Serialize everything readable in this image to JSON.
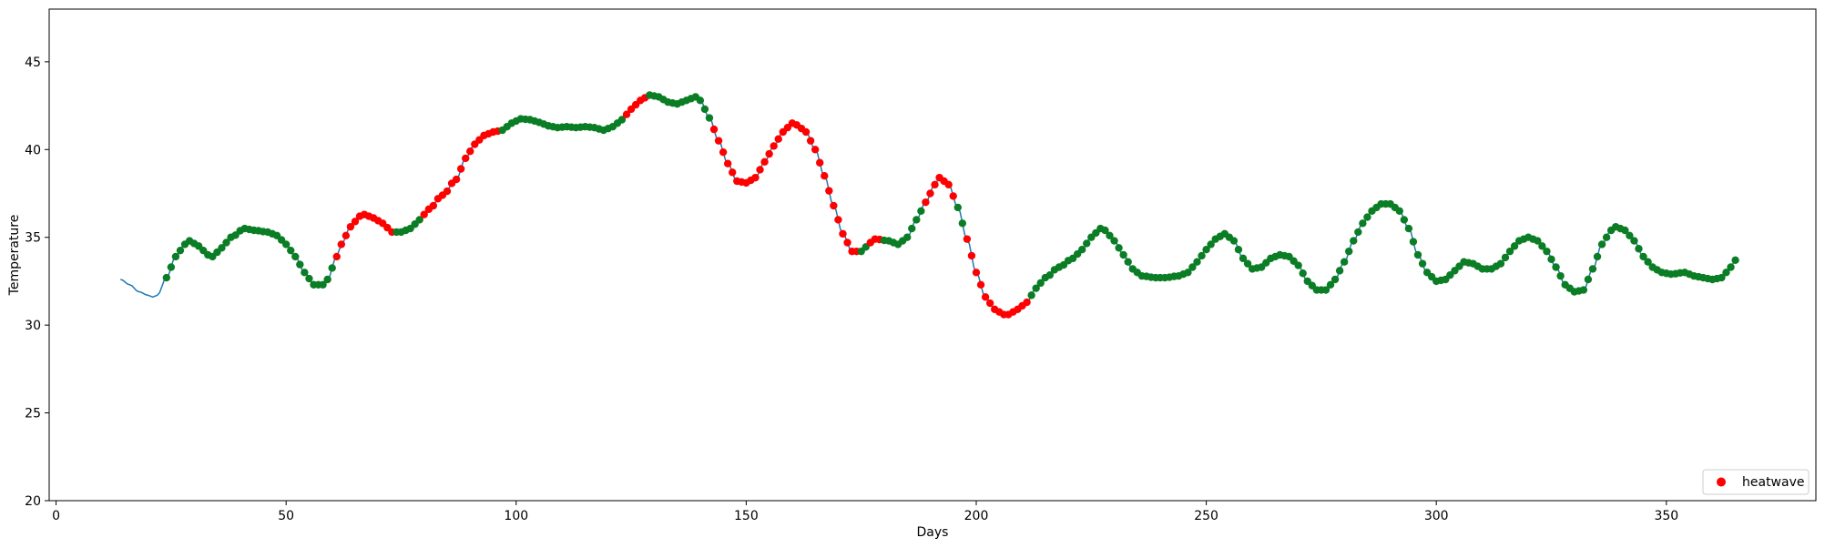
{
  "chart_data": {
    "type": "line",
    "title": "",
    "xlabel": "Days",
    "ylabel": "Temperature",
    "xlim": [
      -1.5,
      382.5
    ],
    "ylim": [
      20,
      48
    ],
    "xticks": [
      0,
      50,
      100,
      150,
      200,
      250,
      300,
      350
    ],
    "yticks": [
      20,
      25,
      30,
      35,
      40,
      45
    ],
    "grid": false,
    "legend": {
      "entries": [
        "heatwave"
      ],
      "position": "lower right"
    },
    "colors": {
      "line": "#1f77b4",
      "heatwave": "#ff0000",
      "green": "#0a7d25"
    },
    "line_start_day": 14,
    "marker_start_day": 24,
    "end_day": 365,
    "keyframes": [
      [
        14,
        32.6
      ],
      [
        16,
        32.3
      ],
      [
        18,
        31.9
      ],
      [
        20,
        31.7
      ],
      [
        21,
        31.6
      ],
      [
        22,
        31.7
      ],
      [
        24,
        32.7
      ],
      [
        26,
        33.9
      ],
      [
        28,
        34.6
      ],
      [
        29,
        34.8
      ],
      [
        31,
        34.5
      ],
      [
        33,
        34.0
      ],
      [
        34,
        33.9
      ],
      [
        36,
        34.4
      ],
      [
        38,
        35.0
      ],
      [
        41,
        35.5
      ],
      [
        43,
        35.4
      ],
      [
        46,
        35.3
      ],
      [
        48,
        35.1
      ],
      [
        50,
        34.6
      ],
      [
        52,
        33.9
      ],
      [
        54,
        33.0
      ],
      [
        56,
        32.3
      ],
      [
        58,
        32.3
      ],
      [
        59,
        32.6
      ],
      [
        61,
        33.9
      ],
      [
        62,
        34.6
      ],
      [
        64,
        35.6
      ],
      [
        66,
        36.2
      ],
      [
        67,
        36.3
      ],
      [
        69,
        36.1
      ],
      [
        71,
        35.8
      ],
      [
        73,
        35.3
      ],
      [
        75,
        35.3
      ],
      [
        77,
        35.5
      ],
      [
        79,
        36.0
      ],
      [
        81,
        36.6
      ],
      [
        84,
        37.4
      ],
      [
        87,
        38.3
      ],
      [
        89,
        39.5
      ],
      [
        91,
        40.3
      ],
      [
        93,
        40.8
      ],
      [
        95,
        41.0
      ],
      [
        97,
        41.1
      ],
      [
        99,
        41.5
      ],
      [
        101,
        41.75
      ],
      [
        103,
        41.7
      ],
      [
        105,
        41.55
      ],
      [
        107,
        41.35
      ],
      [
        109,
        41.25
      ],
      [
        111,
        41.3
      ],
      [
        113,
        41.25
      ],
      [
        115,
        41.3
      ],
      [
        117,
        41.25
      ],
      [
        119,
        41.1
      ],
      [
        121,
        41.3
      ],
      [
        123,
        41.7
      ],
      [
        125,
        42.3
      ],
      [
        127,
        42.8
      ],
      [
        129,
        43.1
      ],
      [
        131,
        43.0
      ],
      [
        133,
        42.7
      ],
      [
        135,
        42.6
      ],
      [
        137,
        42.8
      ],
      [
        139,
        43.0
      ],
      [
        140,
        42.8
      ],
      [
        142,
        41.8
      ],
      [
        144,
        40.5
      ],
      [
        146,
        39.2
      ],
      [
        148,
        38.2
      ],
      [
        150,
        38.1
      ],
      [
        152,
        38.4
      ],
      [
        154,
        39.3
      ],
      [
        156,
        40.2
      ],
      [
        158,
        41.0
      ],
      [
        160,
        41.5
      ],
      [
        161,
        41.4
      ],
      [
        163,
        41.0
      ],
      [
        165,
        40.0
      ],
      [
        167,
        38.5
      ],
      [
        169,
        36.8
      ],
      [
        171,
        35.2
      ],
      [
        173,
        34.2
      ],
      [
        175,
        34.2
      ],
      [
        177,
        34.7
      ],
      [
        178,
        34.9
      ],
      [
        181,
        34.8
      ],
      [
        183,
        34.6
      ],
      [
        185,
        35.0
      ],
      [
        187,
        36.0
      ],
      [
        189,
        37.0
      ],
      [
        191,
        38.0
      ],
      [
        192,
        38.4
      ],
      [
        194,
        38.0
      ],
      [
        196,
        36.7
      ],
      [
        198,
        34.9
      ],
      [
        200,
        33.0
      ],
      [
        202,
        31.6
      ],
      [
        204,
        30.9
      ],
      [
        206,
        30.6
      ],
      [
        207,
        30.6
      ],
      [
        209,
        30.9
      ],
      [
        211,
        31.3
      ],
      [
        213,
        32.1
      ],
      [
        215,
        32.7
      ],
      [
        218,
        33.3
      ],
      [
        221,
        33.8
      ],
      [
        223,
        34.3
      ],
      [
        225,
        35.0
      ],
      [
        227,
        35.5
      ],
      [
        228,
        35.4
      ],
      [
        230,
        34.8
      ],
      [
        232,
        34.0
      ],
      [
        234,
        33.2
      ],
      [
        236,
        32.8
      ],
      [
        239,
        32.7
      ],
      [
        241,
        32.7
      ],
      [
        244,
        32.8
      ],
      [
        246,
        33.0
      ],
      [
        248,
        33.6
      ],
      [
        250,
        34.3
      ],
      [
        252,
        34.9
      ],
      [
        254,
        35.2
      ],
      [
        256,
        34.8
      ],
      [
        258,
        33.8
      ],
      [
        260,
        33.2
      ],
      [
        262,
        33.3
      ],
      [
        264,
        33.8
      ],
      [
        266,
        34.0
      ],
      [
        268,
        33.9
      ],
      [
        270,
        33.4
      ],
      [
        272,
        32.5
      ],
      [
        274,
        32.0
      ],
      [
        276,
        32.0
      ],
      [
        278,
        32.6
      ],
      [
        280,
        33.6
      ],
      [
        282,
        34.8
      ],
      [
        284,
        35.8
      ],
      [
        286,
        36.5
      ],
      [
        288,
        36.9
      ],
      [
        290,
        36.9
      ],
      [
        292,
        36.5
      ],
      [
        294,
        35.5
      ],
      [
        296,
        34.0
      ],
      [
        298,
        33.0
      ],
      [
        300,
        32.5
      ],
      [
        302,
        32.6
      ],
      [
        304,
        33.1
      ],
      [
        306,
        33.6
      ],
      [
        308,
        33.5
      ],
      [
        310,
        33.2
      ],
      [
        312,
        33.2
      ],
      [
        314,
        33.5
      ],
      [
        316,
        34.2
      ],
      [
        318,
        34.8
      ],
      [
        320,
        35.0
      ],
      [
        322,
        34.8
      ],
      [
        324,
        34.2
      ],
      [
        326,
        33.3
      ],
      [
        328,
        32.3
      ],
      [
        330,
        31.9
      ],
      [
        332,
        32.0
      ],
      [
        334,
        33.2
      ],
      [
        336,
        34.6
      ],
      [
        338,
        35.4
      ],
      [
        339,
        35.6
      ],
      [
        341,
        35.4
      ],
      [
        343,
        34.8
      ],
      [
        345,
        33.9
      ],
      [
        347,
        33.3
      ],
      [
        349,
        33.0
      ],
      [
        351,
        32.9
      ],
      [
        354,
        33.0
      ],
      [
        356,
        32.8
      ],
      [
        358,
        32.7
      ],
      [
        360,
        32.6
      ],
      [
        362,
        32.7
      ],
      [
        363,
        33.0
      ],
      [
        364,
        33.3
      ],
      [
        365,
        33.7
      ]
    ],
    "heatwave_ranges": [
      [
        61,
        73
      ],
      [
        80,
        96
      ],
      [
        124,
        128
      ],
      [
        143,
        174
      ],
      [
        177,
        179
      ],
      [
        189,
        195
      ],
      [
        198,
        211
      ]
    ]
  }
}
